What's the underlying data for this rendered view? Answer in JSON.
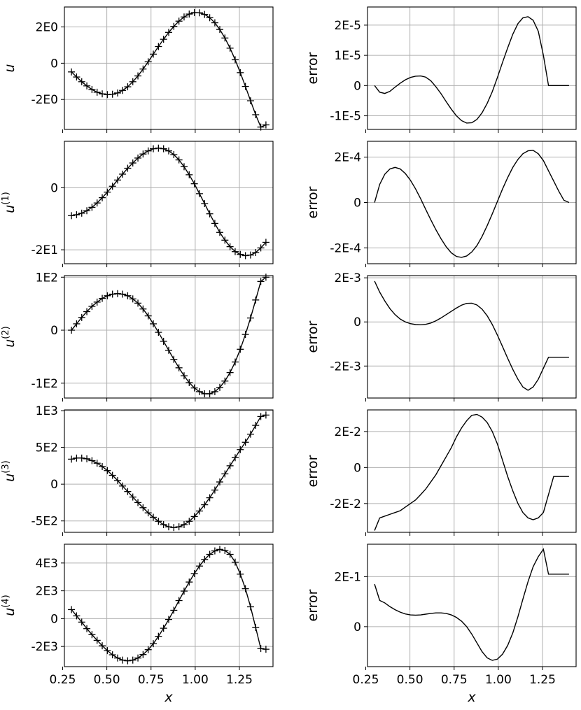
{
  "chart_data": [
    {
      "type": "line",
      "ylabel": "u",
      "ylabel_sup": "",
      "x": [
        0.3,
        0.329,
        0.358,
        0.387,
        0.416,
        0.445,
        0.474,
        0.503,
        0.532,
        0.561,
        0.589,
        0.618,
        0.647,
        0.676,
        0.705,
        0.734,
        0.763,
        0.792,
        0.821,
        0.85,
        0.879,
        0.908,
        0.937,
        0.966,
        0.995,
        1.024,
        1.053,
        1.082,
        1.111,
        1.139,
        1.168,
        1.197,
        1.226,
        1.255,
        1.284,
        1.313,
        1.342,
        1.371,
        1.4
      ],
      "y": [
        -0.48,
        -0.76,
        -1.02,
        -1.25,
        -1.45,
        -1.6,
        -1.69,
        -1.73,
        -1.71,
        -1.64,
        -1.5,
        -1.3,
        -1.02,
        -0.7,
        -0.32,
        0.08,
        0.5,
        0.92,
        1.32,
        1.7,
        2.03,
        2.32,
        2.55,
        2.71,
        2.79,
        2.78,
        2.69,
        2.51,
        2.23,
        1.86,
        1.39,
        0.83,
        0.19,
        -0.52,
        -1.28,
        -2.07,
        -2.84,
        -3.52,
        -3.4
      ],
      "series_style": "solid line with + markers",
      "ylim": [
        -3.65,
        3.1
      ],
      "yticks": [
        -2,
        0,
        2
      ],
      "ytick_labels": [
        "-2E0",
        "0",
        "2E0"
      ]
    },
    {
      "type": "line",
      "ylabel": "error",
      "x": [
        0.3,
        0.329,
        0.358,
        0.387,
        0.416,
        0.445,
        0.474,
        0.503,
        0.532,
        0.561,
        0.589,
        0.618,
        0.647,
        0.676,
        0.705,
        0.734,
        0.763,
        0.792,
        0.821,
        0.85,
        0.879,
        0.908,
        0.937,
        0.966,
        0.995,
        1.024,
        1.053,
        1.082,
        1.111,
        1.139,
        1.168,
        1.197,
        1.226,
        1.255,
        1.284,
        1.313,
        1.342,
        1.371,
        1.4
      ],
      "y": [
        0.0,
        -2.2e-06,
        -2.6e-06,
        -1.9e-06,
        -5e-07,
        8e-07,
        1.9e-06,
        2.7e-06,
        3.1e-06,
        3.2e-06,
        2.8e-06,
        1.6e-06,
        -4e-07,
        -2.7e-06,
        -5.3e-06,
        -7.8e-06,
        -1e-05,
        -1.16e-05,
        -1.24e-05,
        -1.23e-05,
        -1.12e-05,
        -9e-06,
        -5.9e-06,
        -2e-06,
        2.7e-06,
        7.7e-06,
        1.25e-05,
        1.7e-05,
        2.05e-05,
        2.24e-05,
        2.28e-05,
        2.16e-05,
        1.8e-05,
        1e-05,
        0.0,
        0,
        0,
        0,
        0
      ],
      "series_style": "solid line",
      "ylim": [
        -1.45e-05,
        2.6e-05
      ],
      "yticks": [
        -1e-05,
        0,
        1e-05,
        2e-05
      ],
      "ytick_labels": [
        "-1E-5",
        "0",
        "1E-5",
        "2E-5"
      ]
    },
    {
      "type": "line",
      "ylabel": "u",
      "ylabel_sup": "(1)",
      "x": [
        0.3,
        0.329,
        0.358,
        0.387,
        0.416,
        0.445,
        0.474,
        0.503,
        0.532,
        0.561,
        0.589,
        0.618,
        0.647,
        0.676,
        0.705,
        0.734,
        0.763,
        0.792,
        0.821,
        0.85,
        0.879,
        0.908,
        0.937,
        0.966,
        0.995,
        1.024,
        1.053,
        1.082,
        1.111,
        1.139,
        1.168,
        1.197,
        1.226,
        1.255,
        1.284,
        1.313,
        1.342,
        1.371,
        1.4
      ],
      "y": [
        -9.0,
        -8.7,
        -8.2,
        -7.4,
        -6.3,
        -4.9,
        -3.2,
        -1.4,
        0.5,
        2.5,
        4.4,
        6.3,
        8.0,
        9.6,
        10.9,
        11.9,
        12.6,
        12.8,
        12.6,
        11.9,
        10.7,
        9.0,
        6.8,
        4.2,
        1.3,
        -1.9,
        -5.1,
        -8.4,
        -11.5,
        -14.4,
        -16.9,
        -19.0,
        -20.6,
        -21.5,
        -21.9,
        -21.7,
        -20.9,
        -19.4,
        -17.6
      ],
      "series_style": "solid line with + markers",
      "ylim": [
        -24.5,
        15.0
      ],
      "yticks": [
        -20,
        0
      ],
      "ytick_labels": [
        "-2E1",
        "0"
      ]
    },
    {
      "type": "line",
      "ylabel": "error",
      "x": [
        0.3,
        0.329,
        0.358,
        0.387,
        0.416,
        0.445,
        0.474,
        0.503,
        0.532,
        0.561,
        0.589,
        0.618,
        0.647,
        0.676,
        0.705,
        0.734,
        0.763,
        0.792,
        0.821,
        0.85,
        0.879,
        0.908,
        0.937,
        0.966,
        0.995,
        1.024,
        1.053,
        1.082,
        1.111,
        1.139,
        1.168,
        1.197,
        1.226,
        1.255,
        1.284,
        1.313,
        1.342,
        1.371,
        1.4
      ],
      "y": [
        0.0,
        8e-05,
        0.000125,
        0.000148,
        0.000155,
        0.000148,
        0.000128,
        9.8e-05,
        6e-05,
        1.6e-05,
        -3e-05,
        -7.6e-05,
        -0.00012,
        -0.00016,
        -0.000195,
        -0.000222,
        -0.000238,
        -0.000242,
        -0.000236,
        -0.000218,
        -0.00019,
        -0.00015,
        -0.000102,
        -5e-05,
        5e-06,
        6e-05,
        0.00011,
        0.000155,
        0.00019,
        0.000215,
        0.000228,
        0.00023,
        0.000215,
        0.000185,
        0.00014,
        9.5e-05,
        5e-05,
        1e-05,
        0.0
      ],
      "series_style": "solid line",
      "ylim": [
        -0.00027,
        0.00027
      ],
      "yticks": [
        -0.0002,
        0,
        0.0002
      ],
      "ytick_labels": [
        "-2E-4",
        "0",
        "2E-4"
      ]
    },
    {
      "type": "line",
      "ylabel": "u",
      "ylabel_sup": "(2)",
      "x": [
        0.3,
        0.329,
        0.358,
        0.387,
        0.416,
        0.445,
        0.474,
        0.503,
        0.532,
        0.561,
        0.589,
        0.618,
        0.647,
        0.676,
        0.705,
        0.734,
        0.763,
        0.792,
        0.821,
        0.85,
        0.879,
        0.908,
        0.937,
        0.966,
        0.995,
        1.024,
        1.053,
        1.082,
        1.111,
        1.139,
        1.168,
        1.197,
        1.226,
        1.255,
        1.284,
        1.313,
        1.342,
        1.371,
        1.4
      ],
      "y": [
        0,
        12,
        24,
        35,
        45,
        53,
        60,
        65,
        68,
        69,
        68,
        65,
        59,
        51,
        40,
        27,
        12,
        -4,
        -21,
        -38,
        -55,
        -71,
        -86,
        -99,
        -109,
        -116,
        -120,
        -120,
        -116,
        -108,
        -96,
        -80,
        -60,
        -36,
        -8,
        23,
        57,
        92,
        100
      ],
      "series_style": "solid line with + markers",
      "ylim": [
        -128,
        103
      ],
      "yticks": [
        -100,
        0,
        100
      ],
      "ytick_labels": [
        "-1E2",
        "0",
        "1E2"
      ]
    },
    {
      "type": "line",
      "ylabel": "error",
      "x": [
        0.3,
        0.329,
        0.358,
        0.387,
        0.416,
        0.445,
        0.474,
        0.503,
        0.532,
        0.561,
        0.589,
        0.618,
        0.647,
        0.676,
        0.705,
        0.734,
        0.763,
        0.792,
        0.821,
        0.85,
        0.879,
        0.908,
        0.937,
        0.966,
        0.995,
        1.024,
        1.053,
        1.082,
        1.111,
        1.139,
        1.168,
        1.197,
        1.226,
        1.255,
        1.284,
        1.313,
        1.342,
        1.371,
        1.4
      ],
      "y": [
        0.00185,
        0.00135,
        0.00095,
        0.0006,
        0.00033,
        0.00013,
        0.0,
        -8e-05,
        -0.00012,
        -0.00013,
        -0.00011,
        -5e-05,
        5e-05,
        0.00018,
        0.00033,
        0.00048,
        0.00063,
        0.00076,
        0.00084,
        0.00085,
        0.00077,
        0.00058,
        0.00028,
        -0.00012,
        -0.0006,
        -0.00112,
        -0.00165,
        -0.00215,
        -0.0026,
        -0.00295,
        -0.0031,
        -0.00295,
        -0.0026,
        -0.0021,
        -0.0016,
        -0.0016,
        -0.0016,
        -0.0016,
        -0.0016
      ],
      "series_style": "solid line",
      "ylim": [
        -0.00345,
        0.0021
      ],
      "yticks": [
        -0.002,
        0,
        0.002
      ],
      "ytick_labels": [
        "-2E-3",
        "0",
        "2E-3"
      ]
    },
    {
      "type": "line",
      "ylabel": "u",
      "ylabel_sup": "(3)",
      "x": [
        0.3,
        0.329,
        0.358,
        0.387,
        0.416,
        0.445,
        0.474,
        0.503,
        0.532,
        0.561,
        0.589,
        0.618,
        0.647,
        0.676,
        0.705,
        0.734,
        0.763,
        0.792,
        0.821,
        0.85,
        0.879,
        0.908,
        0.937,
        0.966,
        0.995,
        1.024,
        1.053,
        1.082,
        1.111,
        1.139,
        1.168,
        1.197,
        1.226,
        1.255,
        1.284,
        1.313,
        1.342,
        1.371,
        1.4
      ],
      "y": [
        340,
        355,
        355,
        345,
        320,
        285,
        240,
        185,
        120,
        50,
        -25,
        -100,
        -175,
        -250,
        -320,
        -390,
        -450,
        -505,
        -550,
        -580,
        -590,
        -580,
        -550,
        -505,
        -440,
        -365,
        -280,
        -185,
        -80,
        30,
        140,
        250,
        360,
        470,
        570,
        680,
        800,
        920,
        940
      ],
      "series_style": "solid line with + markers",
      "ylim": [
        -655,
        1010
      ],
      "yticks": [
        -500,
        0,
        500,
        1000
      ],
      "ytick_labels": [
        "-5E2",
        "0",
        "5E2",
        "1E3"
      ]
    },
    {
      "type": "line",
      "ylabel": "error",
      "x": [
        0.3,
        0.329,
        0.358,
        0.387,
        0.416,
        0.445,
        0.474,
        0.503,
        0.532,
        0.561,
        0.589,
        0.618,
        0.647,
        0.676,
        0.705,
        0.734,
        0.763,
        0.792,
        0.821,
        0.85,
        0.879,
        0.908,
        0.937,
        0.966,
        0.995,
        1.024,
        1.053,
        1.082,
        1.111,
        1.139,
        1.168,
        1.197,
        1.226,
        1.255,
        1.284,
        1.313,
        1.342,
        1.371,
        1.4
      ],
      "y": [
        -0.035,
        -0.028,
        -0.027,
        -0.026,
        -0.025,
        -0.024,
        -0.022,
        -0.02,
        -0.018,
        -0.015,
        -0.012,
        -0.008,
        -0.004,
        0.001,
        0.006,
        0.011,
        0.017,
        0.022,
        0.026,
        0.029,
        0.0295,
        0.028,
        0.025,
        0.02,
        0.013,
        0.004,
        -0.005,
        -0.013,
        -0.02,
        -0.025,
        -0.028,
        -0.029,
        -0.028,
        -0.025,
        -0.015,
        -0.005,
        -0.005,
        -0.005,
        -0.005
      ],
      "series_style": "solid line",
      "ylim": [
        -0.036,
        0.032
      ],
      "yticks": [
        -0.02,
        0,
        0.02
      ],
      "ytick_labels": [
        "-2E-2",
        "0",
        "2E-2"
      ]
    },
    {
      "type": "line",
      "ylabel": "u",
      "ylabel_sup": "(4)",
      "x": [
        0.3,
        0.329,
        0.358,
        0.387,
        0.416,
        0.445,
        0.474,
        0.503,
        0.532,
        0.561,
        0.589,
        0.618,
        0.647,
        0.676,
        0.705,
        0.734,
        0.763,
        0.792,
        0.821,
        0.85,
        0.879,
        0.908,
        0.937,
        0.966,
        0.995,
        1.024,
        1.053,
        1.082,
        1.111,
        1.139,
        1.168,
        1.197,
        1.226,
        1.255,
        1.284,
        1.313,
        1.342,
        1.371,
        1.4
      ],
      "y": [
        650,
        200,
        -250,
        -720,
        -1150,
        -1560,
        -1950,
        -2300,
        -2600,
        -2830,
        -2980,
        -3030,
        -2980,
        -2830,
        -2580,
        -2230,
        -1800,
        -1270,
        -690,
        -60,
        600,
        1300,
        1980,
        2630,
        3240,
        3780,
        4250,
        4620,
        4870,
        4980,
        4900,
        4620,
        4060,
        3200,
        2150,
        850,
        -640,
        -2150,
        -2200
      ],
      "series_style": "solid line with + markers",
      "ylim": [
        -3450,
        5350
      ],
      "yticks": [
        -2000,
        0,
        2000,
        4000
      ],
      "ytick_labels": [
        "-2E3",
        "0",
        "2E3",
        "4E3"
      ]
    },
    {
      "type": "line",
      "ylabel": "error",
      "x": [
        0.3,
        0.329,
        0.358,
        0.387,
        0.416,
        0.445,
        0.474,
        0.503,
        0.532,
        0.561,
        0.589,
        0.618,
        0.647,
        0.676,
        0.705,
        0.734,
        0.763,
        0.792,
        0.821,
        0.85,
        0.879,
        0.908,
        0.937,
        0.966,
        0.995,
        1.024,
        1.053,
        1.082,
        1.111,
        1.139,
        1.168,
        1.197,
        1.226,
        1.255,
        1.284,
        1.313,
        1.342,
        1.371,
        1.4
      ],
      "y": [
        0.17,
        0.105,
        0.095,
        0.08,
        0.068,
        0.058,
        0.051,
        0.047,
        0.046,
        0.047,
        0.05,
        0.053,
        0.055,
        0.055,
        0.053,
        0.047,
        0.037,
        0.022,
        0.0,
        -0.03,
        -0.065,
        -0.1,
        -0.125,
        -0.135,
        -0.13,
        -0.11,
        -0.075,
        -0.025,
        0.04,
        0.11,
        0.18,
        0.24,
        0.28,
        0.31,
        0.21,
        0.21,
        0.21,
        0.21,
        0.21
      ],
      "series_style": "solid line",
      "ylim": [
        -0.16,
        0.33
      ],
      "yticks": [
        0,
        0.2
      ],
      "ytick_labels": [
        "0",
        "2E-1"
      ]
    }
  ],
  "xaxis": {
    "xlim": [
      0.26,
      1.44
    ],
    "xticks": [
      0.25,
      0.5,
      0.75,
      1.0,
      1.25
    ],
    "xtick_labels": [
      "0.25",
      "0.50",
      "0.75",
      "1.00",
      "1.25"
    ],
    "xlabel": "x"
  }
}
